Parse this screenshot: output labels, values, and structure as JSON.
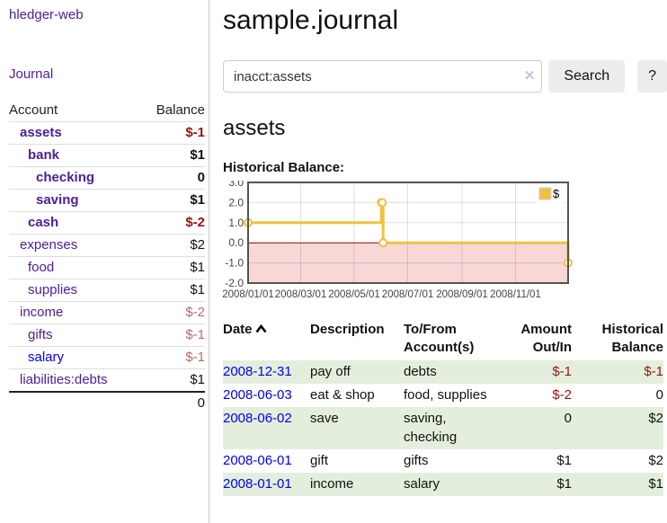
{
  "sidebar": {
    "brand": "hledger-web",
    "nav_journal": "Journal",
    "accounts": {
      "col_account": "Account",
      "col_balance": "Balance",
      "rows": [
        {
          "name": "assets",
          "balance": "$-1",
          "indent": 1,
          "bold": true,
          "balance_style": "neg-strong"
        },
        {
          "name": "bank",
          "balance": "$1",
          "indent": 2,
          "bold": true,
          "balance_style": "pos"
        },
        {
          "name": "checking",
          "balance": "0",
          "indent": 3,
          "bold": true,
          "balance_style": "pos"
        },
        {
          "name": "saving",
          "balance": "$1",
          "indent": 3,
          "bold": true,
          "balance_style": "pos"
        },
        {
          "name": "cash",
          "balance": "$-2",
          "indent": 2,
          "bold": true,
          "balance_style": "neg-strong"
        },
        {
          "name": "expenses",
          "balance": "$2",
          "indent": 1,
          "bold": false,
          "balance_style": "pos"
        },
        {
          "name": "food",
          "balance": "$1",
          "indent": 2,
          "bold": false,
          "balance_style": "pos"
        },
        {
          "name": "supplies",
          "balance": "$1",
          "indent": 2,
          "bold": false,
          "balance_style": "pos"
        },
        {
          "name": "income",
          "balance": "$-2",
          "indent": 1,
          "bold": false,
          "balance_style": "neg-soft"
        },
        {
          "name": "gifts",
          "balance": "$-1",
          "indent": 2,
          "bold": false,
          "balance_style": "neg-soft"
        },
        {
          "name": "salary",
          "balance": "$-1",
          "indent": 2,
          "bold": false,
          "balance_style": "neg-soft",
          "link_color": "blue"
        },
        {
          "name": "liabilities:debts",
          "balance": "$1",
          "indent": 1,
          "bold": false,
          "balance_style": "pos"
        }
      ],
      "total": "0"
    }
  },
  "header": {
    "title": "sample.journal"
  },
  "search": {
    "query": "inacct:assets",
    "clear_icon": "✕",
    "search_label": "Search",
    "help_label": "?"
  },
  "account_page": {
    "heading": "assets",
    "chart_title": "Historical Balance:"
  },
  "chart_data": {
    "type": "line",
    "style": "step-after",
    "title": "Historical Balance",
    "series": [
      {
        "name": "$",
        "color": "#edc240",
        "points": [
          [
            "2008-01-01",
            1
          ],
          [
            "2008-06-01",
            2
          ],
          [
            "2008-06-02",
            2
          ],
          [
            "2008-06-03",
            0
          ],
          [
            "2008-12-31",
            -1
          ]
        ]
      }
    ],
    "ylim": [
      -2.0,
      3.0
    ],
    "yticks": [
      3.0,
      2.0,
      1.0,
      0.0,
      -1.0,
      -2.0
    ],
    "xticks": [
      "2008/01/01",
      "2008/03/01",
      "2008/05/01",
      "2008/07/01",
      "2008/09/01",
      "2008/11/01"
    ],
    "grid": true,
    "legend_position": "top-right",
    "negative_region_fill": "#f9d7d7",
    "zero_line_color": "#8b0000",
    "border_color": "#545454"
  },
  "register": {
    "columns": [
      "Date",
      "Description",
      "To/From Account(s)",
      "Amount Out/In",
      "Historical Balance"
    ],
    "sort_indicator": "caret-up",
    "rows": [
      {
        "date": "2008-12-31",
        "description": "pay off",
        "accounts": "debts",
        "amount": "$-1",
        "balance": "$-1",
        "amount_negative": true,
        "balance_negative": true
      },
      {
        "date": "2008-06-03",
        "description": "eat & shop",
        "accounts": "food, supplies",
        "amount": "$-2",
        "balance": "0",
        "amount_negative": true,
        "balance_negative": false
      },
      {
        "date": "2008-06-02",
        "description": "save",
        "accounts": "saving, checking",
        "amount": "0",
        "balance": "$2",
        "amount_negative": false,
        "balance_negative": false
      },
      {
        "date": "2008-06-01",
        "description": "gift",
        "accounts": "gifts",
        "amount": "$1",
        "balance": "$2",
        "amount_negative": false,
        "balance_negative": false
      },
      {
        "date": "2008-01-01",
        "description": "income",
        "accounts": "salary",
        "amount": "$1",
        "balance": "$1",
        "amount_negative": false,
        "balance_negative": false
      }
    ]
  },
  "colors": {
    "link_purple": "#4c2096",
    "link_blue": "#0000ee",
    "negative_strong": "#941414",
    "negative_soft": "#c06868",
    "row_stripe_green": "#e3efdc",
    "series_gold": "#edc240"
  }
}
